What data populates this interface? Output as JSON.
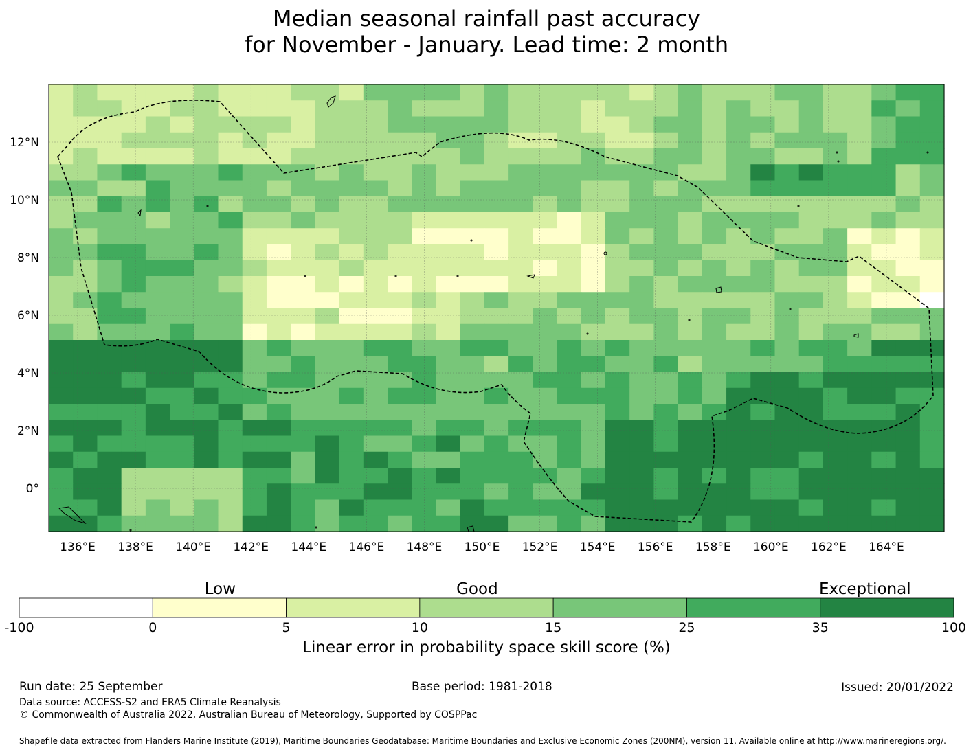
{
  "title": {
    "line1": "Median seasonal rainfall past accuracy",
    "line2": "for November - January. Lead time: 2 month"
  },
  "map": {
    "lon_range": [
      135,
      166
    ],
    "lat_range": [
      -1.5,
      14
    ],
    "lon_ticks": [
      "136°E",
      "138°E",
      "140°E",
      "142°E",
      "144°E",
      "146°E",
      "148°E",
      "150°E",
      "152°E",
      "154°E",
      "156°E",
      "158°E",
      "160°E",
      "162°E",
      "164°E"
    ],
    "lon_tick_values": [
      136,
      138,
      140,
      142,
      144,
      146,
      148,
      150,
      152,
      154,
      156,
      158,
      160,
      162,
      164
    ],
    "lat_ticks": [
      "12°N",
      "10°N",
      "8°N",
      "6°N",
      "4°N",
      "2°N",
      "0°"
    ],
    "lat_tick_values": [
      12,
      10,
      8,
      6,
      4,
      2,
      0
    ],
    "boundary": "EEZ boundary (dashed)"
  },
  "colorbar": {
    "category_labels": [
      "Low",
      "Good",
      "Exceptional"
    ],
    "ticks": [
      "-100",
      "0",
      "5",
      "10",
      "15",
      "25",
      "35",
      "100"
    ],
    "colors": [
      "#ffffff",
      "#ffffcc",
      "#d9f0a3",
      "#addd8e",
      "#78c679",
      "#41ab5d",
      "#238443"
    ],
    "title": "Linear error in probability space skill score (%)"
  },
  "footer": {
    "run_date": "Run date: 25 September",
    "base_period": "Base period: 1981-2018",
    "issued": "Issued: 20/01/2022",
    "data_source": "Data source: ACCESS-S2 and ERA5 Climate Reanalysis",
    "copyright": "© Commonwealth of Australia 2022, Australian Bureau of Meteorology, Supported by COSPPac",
    "shapefile": "Shapefile data extracted from Flanders Marine Institute (2019), Maritime Boundaries Geodatabase: Maritime Boundaries and Exclusive Economic Zones (200NM), version 11. Available online at http://www.marineregions.org/."
  }
}
